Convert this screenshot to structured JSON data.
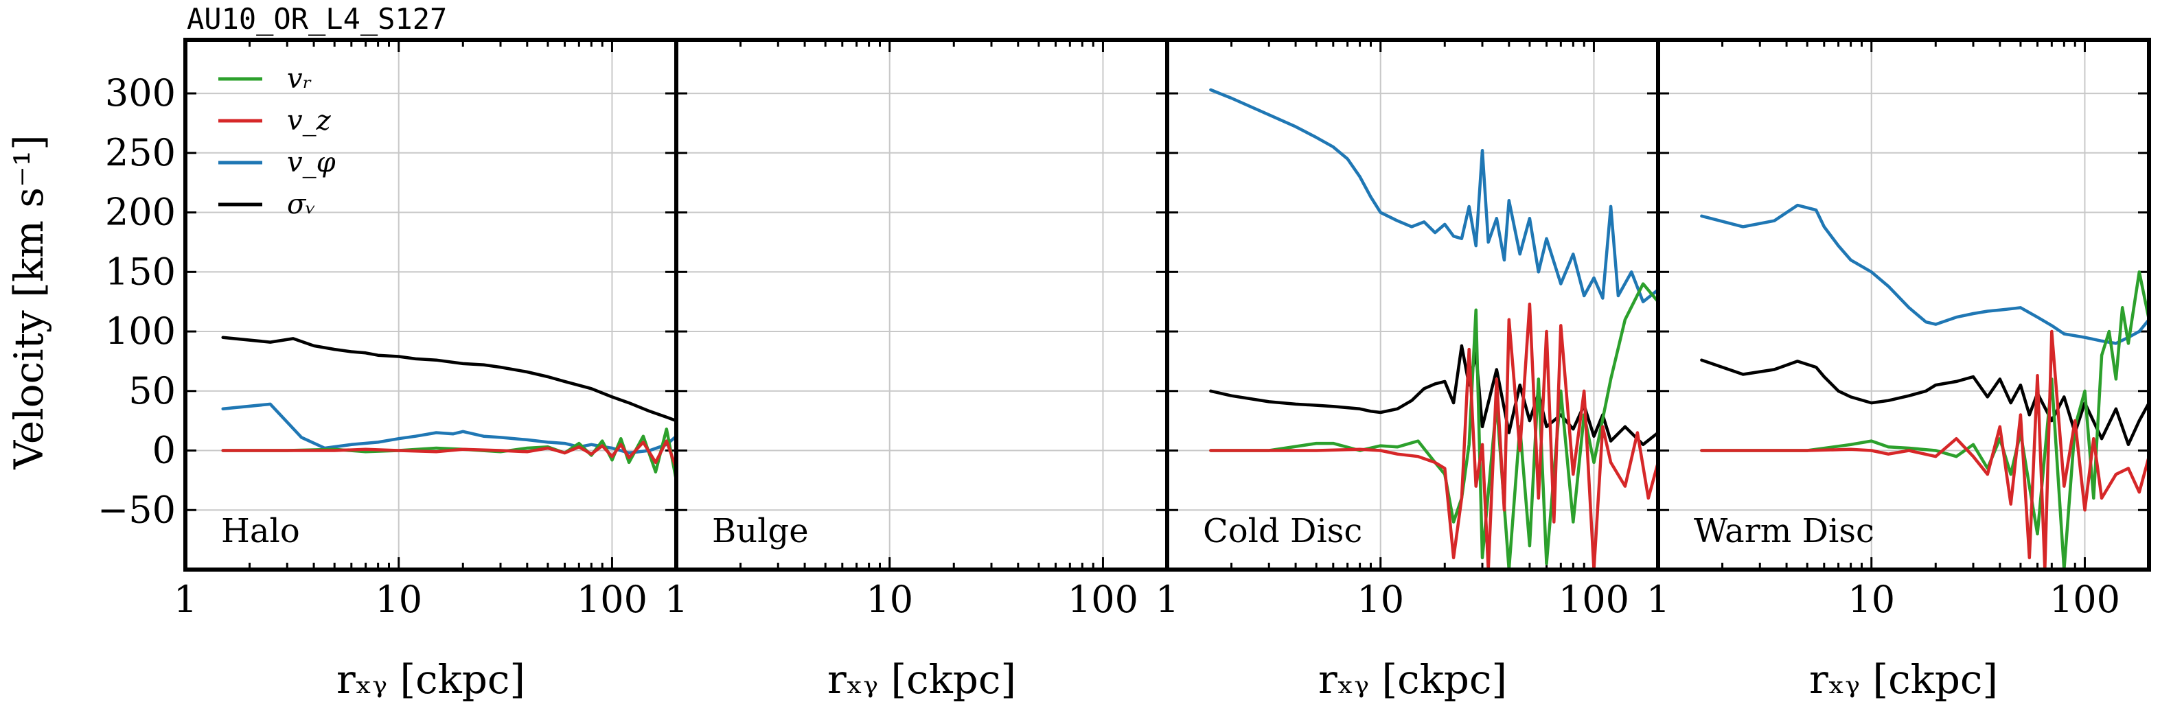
{
  "colors": {
    "v_r": "#2ca02c",
    "v_z": "#d62728",
    "v_phi": "#1f77b4",
    "sigma_v": "#000000",
    "grid": "#c8c8c8"
  },
  "chart_data": {
    "type": "line",
    "title": "AU10_OR_L4_S127",
    "ylabel": "Velocity [km s⁻¹]",
    "xlabel": "rₓᵧ [ckpc]",
    "xscale": "log",
    "xlim": [
      1,
      200
    ],
    "ylim": [
      -100,
      345
    ],
    "yticks": [
      300,
      250,
      200,
      150,
      100,
      50,
      0,
      -50
    ],
    "ytick_labels": [
      "300",
      "250",
      "200",
      "150",
      "100",
      "50",
      "0",
      "−50"
    ],
    "xticks": [
      1,
      10,
      100
    ],
    "xtick_labels": [
      "1",
      "10",
      "100"
    ],
    "grid": true,
    "legend": {
      "location": "top-left",
      "entries": [
        {
          "key": "v_r",
          "label": "vᵣ"
        },
        {
          "key": "v_z",
          "label": "v_z"
        },
        {
          "key": "v_phi",
          "label": "v_φ"
        },
        {
          "key": "sigma_v",
          "label": "σᵥ"
        }
      ]
    },
    "panels": [
      {
        "label": "Halo",
        "series": [
          {
            "key": "sigma_v",
            "x": [
              1.5,
              2.5,
              3.2,
              4,
              5,
              6,
              7,
              8,
              10,
              12,
              15,
              20,
              25,
              30,
              40,
              50,
              60,
              80,
              100,
              120,
              150,
              180,
              200
            ],
            "y": [
              95,
              91,
              94,
              88,
              85,
              83,
              82,
              80,
              79,
              77,
              76,
              73,
              72,
              70,
              66,
              62,
              58,
              52,
              45,
              40,
              33,
              28,
              25
            ]
          },
          {
            "key": "v_phi",
            "x": [
              1.5,
              2.5,
              3.5,
              4.5,
              6,
              8,
              10,
              12,
              15,
              18,
              20,
              25,
              30,
              40,
              50,
              60,
              70,
              80,
              100,
              120,
              150,
              180,
              200
            ],
            "y": [
              35,
              39,
              11,
              2,
              5,
              7,
              10,
              12,
              15,
              14,
              16,
              12,
              11,
              9,
              7,
              6,
              3,
              5,
              2,
              -2,
              0,
              5,
              12
            ]
          },
          {
            "key": "v_r",
            "x": [
              1.5,
              3,
              5,
              7,
              10,
              15,
              20,
              30,
              40,
              50,
              60,
              70,
              80,
              90,
              100,
              110,
              120,
              140,
              160,
              180,
              200
            ],
            "y": [
              0,
              0,
              1,
              -1,
              0,
              2,
              1,
              -1,
              2,
              3,
              -2,
              6,
              -4,
              8,
              -8,
              10,
              -10,
              12,
              -18,
              18,
              -25
            ]
          },
          {
            "key": "v_z",
            "x": [
              1.5,
              3,
              5,
              7,
              10,
              15,
              20,
              30,
              40,
              50,
              60,
              70,
              80,
              90,
              100,
              110,
              120,
              140,
              160,
              180,
              200
            ],
            "y": [
              0,
              0,
              0,
              1,
              0,
              -1,
              1,
              0,
              -1,
              2,
              -2,
              3,
              -3,
              4,
              -5,
              5,
              -6,
              7,
              -10,
              8,
              -15
            ]
          }
        ]
      },
      {
        "label": "Bulge",
        "series": []
      },
      {
        "label": "Cold Disc",
        "series": [
          {
            "key": "v_phi",
            "x": [
              1.6,
              2,
              3,
              4,
              5,
              6,
              7,
              8,
              9,
              10,
              12,
              14,
              16,
              18,
              20,
              22,
              24,
              26,
              28,
              30,
              32,
              35,
              38,
              40,
              45,
              50,
              55,
              60,
              70,
              80,
              90,
              100,
              110,
              120,
              130,
              150,
              170,
              200
            ],
            "y": [
              303,
              296,
              282,
              272,
              263,
              255,
              245,
              230,
              213,
              200,
              193,
              188,
              192,
              183,
              190,
              180,
              178,
              205,
              172,
              252,
              175,
              195,
              160,
              210,
              165,
              195,
              150,
              178,
              140,
              165,
              130,
              145,
              128,
              205,
              130,
              150,
              125,
              135
            ]
          },
          {
            "key": "sigma_v",
            "x": [
              1.6,
              2,
              3,
              4,
              5,
              6,
              7,
              8,
              9,
              10,
              12,
              14,
              16,
              18,
              20,
              22,
              24,
              26,
              28,
              30,
              35,
              40,
              45,
              50,
              55,
              60,
              70,
              80,
              90,
              100,
              110,
              120,
              140,
              170,
              200
            ],
            "y": [
              50,
              46,
              41,
              39,
              38,
              37,
              36,
              35,
              33,
              32,
              35,
              42,
              52,
              56,
              58,
              40,
              88,
              55,
              82,
              20,
              68,
              15,
              55,
              25,
              48,
              20,
              30,
              18,
              38,
              12,
              30,
              8,
              20,
              5,
              15
            ]
          },
          {
            "key": "v_r",
            "x": [
              1.6,
              3,
              5,
              6,
              8,
              10,
              12,
              15,
              18,
              20,
              22,
              24,
              26,
              28,
              30,
              35,
              40,
              45,
              50,
              55,
              60,
              70,
              80,
              90,
              100,
              120,
              140,
              170,
              200
            ],
            "y": [
              0,
              0,
              6,
              6,
              0,
              4,
              3,
              8,
              -10,
              -20,
              -60,
              -40,
              5,
              118,
              -90,
              40,
              -100,
              20,
              -80,
              60,
              -95,
              50,
              -60,
              30,
              -10,
              60,
              110,
              140,
              125
            ]
          },
          {
            "key": "v_z",
            "x": [
              1.6,
              3,
              5,
              8,
              10,
              12,
              15,
              18,
              20,
              22,
              24,
              26,
              28,
              30,
              32,
              35,
              38,
              40,
              45,
              50,
              55,
              60,
              65,
              70,
              80,
              90,
              100,
              110,
              120,
              140,
              160,
              180,
              200
            ],
            "y": [
              0,
              0,
              0,
              1,
              0,
              -3,
              -5,
              -10,
              -15,
              -90,
              -40,
              85,
              -30,
              5,
              -100,
              60,
              -50,
              110,
              0,
              123,
              -40,
              100,
              -60,
              105,
              -20,
              50,
              -100,
              20,
              -10,
              -30,
              15,
              -40,
              -10
            ]
          }
        ]
      },
      {
        "label": "Warm Disc",
        "series": [
          {
            "key": "v_phi",
            "x": [
              1.6,
              2.5,
              3.5,
              4.5,
              5.5,
              6,
              7,
              8,
              10,
              12,
              15,
              18,
              20,
              25,
              30,
              35,
              40,
              50,
              60,
              70,
              80,
              100,
              120,
              140,
              160,
              180,
              200
            ],
            "y": [
              197,
              188,
              193,
              206,
              202,
              188,
              172,
              160,
              150,
              138,
              120,
              108,
              106,
              112,
              115,
              117,
              118,
              120,
              112,
              105,
              98,
              95,
              92,
              90,
              95,
              100,
              110
            ]
          },
          {
            "key": "sigma_v",
            "x": [
              1.6,
              2.5,
              3.5,
              4.5,
              5.5,
              6,
              7,
              8,
              10,
              12,
              15,
              18,
              20,
              25,
              30,
              35,
              40,
              45,
              50,
              55,
              60,
              70,
              80,
              90,
              100,
              120,
              140,
              160,
              180,
              200
            ],
            "y": [
              76,
              64,
              68,
              75,
              70,
              62,
              50,
              45,
              40,
              42,
              46,
              50,
              55,
              58,
              62,
              45,
              60,
              40,
              55,
              30,
              48,
              25,
              45,
              15,
              40,
              10,
              35,
              5,
              25,
              40
            ]
          },
          {
            "key": "v_r",
            "x": [
              1.6,
              3,
              5,
              8,
              10,
              12,
              15,
              20,
              25,
              30,
              35,
              40,
              45,
              50,
              55,
              60,
              70,
              80,
              90,
              100,
              110,
              120,
              130,
              140,
              150,
              160,
              180,
              200
            ],
            "y": [
              0,
              0,
              0,
              5,
              8,
              3,
              2,
              0,
              -5,
              5,
              -15,
              10,
              -20,
              15,
              -30,
              -70,
              60,
              -100,
              20,
              50,
              -40,
              80,
              100,
              60,
              120,
              90,
              150,
              110
            ]
          },
          {
            "key": "v_z",
            "x": [
              1.6,
              3,
              5,
              8,
              10,
              12,
              15,
              20,
              25,
              30,
              35,
              40,
              45,
              50,
              55,
              60,
              65,
              70,
              80,
              90,
              100,
              110,
              120,
              140,
              160,
              180,
              200
            ],
            "y": [
              0,
              0,
              0,
              1,
              0,
              -3,
              0,
              -5,
              10,
              -5,
              -20,
              20,
              -45,
              30,
              -90,
              63,
              -100,
              100,
              -30,
              25,
              -50,
              10,
              -40,
              -20,
              -15,
              -35,
              -5
            ]
          }
        ]
      }
    ]
  }
}
